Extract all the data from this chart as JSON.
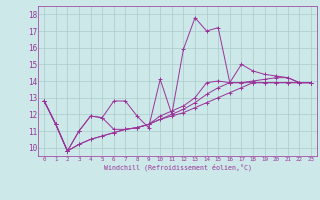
{
  "xlabel": "Windchill (Refroidissement éolien,°C)",
  "bg_color": "#cce8e8",
  "grid_color": "#aacccc",
  "line_color": "#993399",
  "xlim": [
    -0.5,
    23.5
  ],
  "ylim": [
    9.5,
    18.5
  ],
  "xticks": [
    0,
    1,
    2,
    3,
    4,
    5,
    6,
    7,
    8,
    9,
    10,
    11,
    12,
    13,
    14,
    15,
    16,
    17,
    18,
    19,
    20,
    21,
    22,
    23
  ],
  "yticks": [
    10,
    11,
    12,
    13,
    14,
    15,
    16,
    17,
    18
  ],
  "series": [
    [
      12.8,
      11.4,
      9.8,
      11.0,
      11.9,
      11.8,
      12.8,
      12.8,
      11.9,
      11.2,
      14.1,
      12.0,
      15.9,
      17.8,
      17.0,
      17.2,
      13.9,
      15.0,
      14.6,
      14.4,
      14.3,
      14.2,
      13.9,
      13.9
    ],
    [
      12.8,
      11.4,
      9.8,
      11.0,
      11.9,
      11.8,
      11.1,
      11.1,
      11.2,
      11.4,
      11.9,
      12.2,
      12.5,
      13.0,
      13.9,
      14.0,
      13.9,
      13.9,
      14.0,
      14.1,
      14.2,
      14.2,
      13.9,
      13.9
    ],
    [
      12.8,
      11.4,
      9.8,
      10.2,
      10.5,
      10.7,
      10.9,
      11.1,
      11.2,
      11.4,
      11.7,
      12.0,
      12.3,
      12.7,
      13.2,
      13.6,
      13.9,
      13.9,
      13.9,
      13.9,
      13.9,
      13.9,
      13.9,
      13.9
    ],
    [
      12.8,
      11.4,
      9.8,
      10.2,
      10.5,
      10.7,
      10.9,
      11.1,
      11.2,
      11.4,
      11.7,
      11.9,
      12.1,
      12.4,
      12.7,
      13.0,
      13.3,
      13.6,
      13.9,
      13.9,
      13.9,
      13.9,
      13.9,
      13.9
    ]
  ]
}
